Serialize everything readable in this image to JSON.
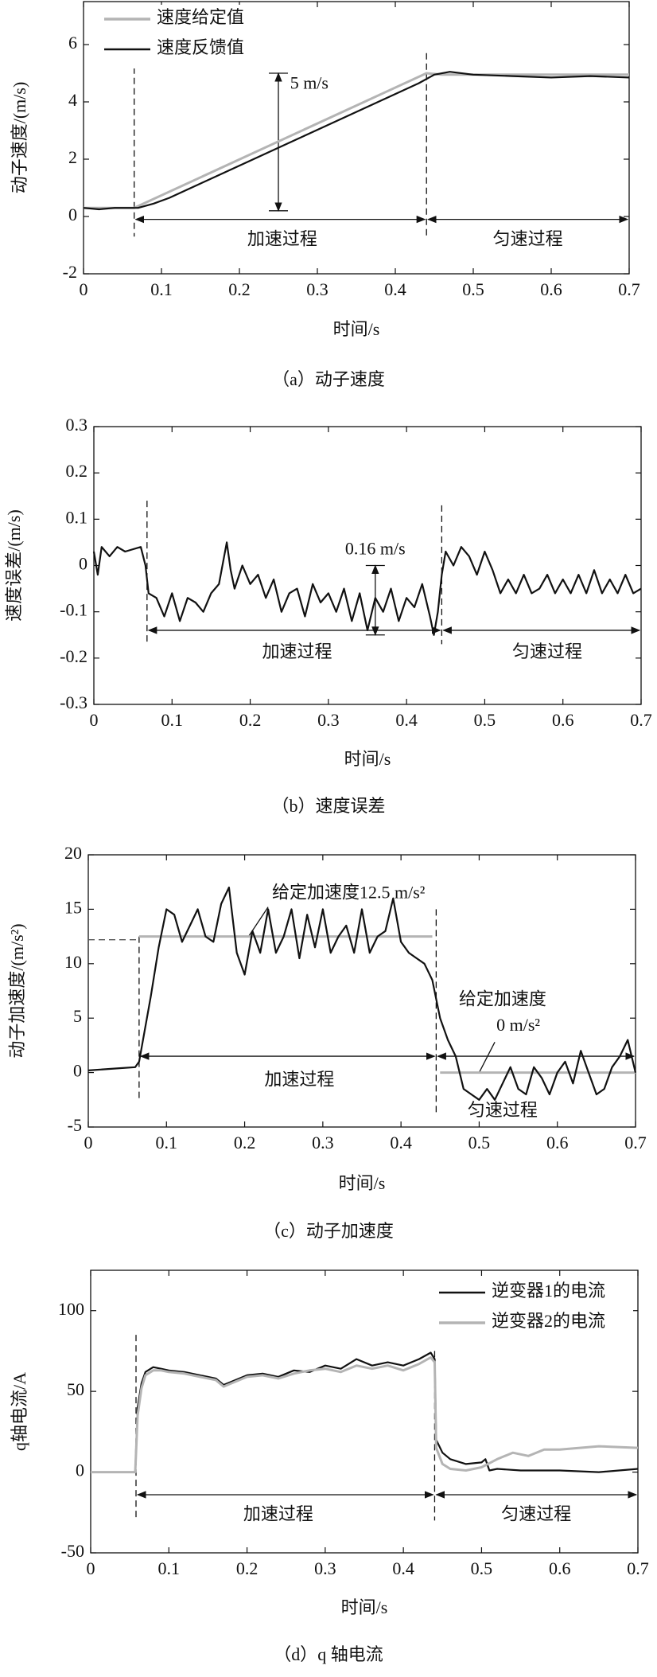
{
  "chart_data": [
    {
      "type": "line",
      "caption": "（a）动子速度",
      "xlabel": "时间/s",
      "ylabel": "动子速度/(m/s)",
      "xlim": [
        0,
        0.7
      ],
      "xticks": [
        0,
        0.1,
        0.2,
        0.3,
        0.4,
        0.5,
        0.6,
        0.7
      ],
      "ylim": [
        -2,
        7.5
      ],
      "yticks": [
        -2,
        0,
        2,
        4,
        6
      ],
      "legend": "upper left",
      "annotations": [
        "5 m/s",
        "加速过程",
        "匀速过程"
      ],
      "series": [
        {
          "name": "速度给定值",
          "color": "#b4b4b4",
          "x": [
            0,
            0.065,
            0.44,
            0.46,
            0.7
          ],
          "values": [
            0.3,
            0.3,
            5.0,
            4.95,
            4.95
          ]
        },
        {
          "name": "速度反馈值",
          "color": "#111111",
          "x": [
            0,
            0.02,
            0.04,
            0.07,
            0.09,
            0.11,
            0.13,
            0.15,
            0.17,
            0.19,
            0.21,
            0.23,
            0.25,
            0.27,
            0.29,
            0.31,
            0.33,
            0.35,
            0.37,
            0.39,
            0.41,
            0.43,
            0.45,
            0.47,
            0.5,
            0.55,
            0.6,
            0.65,
            0.7
          ],
          "values": [
            0.3,
            0.25,
            0.3,
            0.3,
            0.45,
            0.65,
            0.9,
            1.15,
            1.4,
            1.65,
            1.9,
            2.15,
            2.4,
            2.65,
            2.9,
            3.15,
            3.4,
            3.65,
            3.9,
            4.15,
            4.4,
            4.65,
            4.95,
            5.05,
            4.95,
            4.9,
            4.85,
            4.9,
            4.85
          ]
        }
      ]
    },
    {
      "type": "line",
      "caption": "（b）速度误差",
      "xlabel": "时间/s",
      "ylabel": "速度误差/(m/s)",
      "xlim": [
        0,
        0.7
      ],
      "xticks": [
        0,
        0.1,
        0.2,
        0.3,
        0.4,
        0.5,
        0.6,
        0.7
      ],
      "ylim": [
        -0.3,
        0.3
      ],
      "yticks": [
        -0.3,
        -0.2,
        -0.1,
        0,
        0.1,
        0.2,
        0.3
      ],
      "annotations": [
        "0.16 m/s",
        "加速过程",
        "匀速过程"
      ],
      "series": [
        {
          "color": "#111111",
          "x": [
            0,
            0.005,
            0.01,
            0.02,
            0.03,
            0.04,
            0.06,
            0.066,
            0.07,
            0.08,
            0.09,
            0.1,
            0.11,
            0.12,
            0.13,
            0.14,
            0.15,
            0.16,
            0.17,
            0.175,
            0.18,
            0.19,
            0.2,
            0.21,
            0.22,
            0.23,
            0.24,
            0.25,
            0.26,
            0.27,
            0.28,
            0.29,
            0.3,
            0.31,
            0.32,
            0.33,
            0.34,
            0.35,
            0.36,
            0.37,
            0.38,
            0.39,
            0.4,
            0.41,
            0.42,
            0.43,
            0.435,
            0.44,
            0.445,
            0.45,
            0.46,
            0.47,
            0.48,
            0.49,
            0.5,
            0.51,
            0.52,
            0.53,
            0.54,
            0.55,
            0.56,
            0.57,
            0.58,
            0.59,
            0.6,
            0.61,
            0.62,
            0.63,
            0.64,
            0.65,
            0.66,
            0.67,
            0.68,
            0.69,
            0.7
          ],
          "values": [
            0.03,
            -0.02,
            0.04,
            0.02,
            0.04,
            0.03,
            0.04,
            0.0,
            -0.06,
            -0.07,
            -0.11,
            -0.06,
            -0.12,
            -0.07,
            -0.08,
            -0.1,
            -0.06,
            -0.04,
            0.05,
            -0.01,
            -0.05,
            0.0,
            -0.04,
            -0.02,
            -0.07,
            -0.03,
            -0.1,
            -0.06,
            -0.05,
            -0.11,
            -0.04,
            -0.08,
            -0.06,
            -0.1,
            -0.05,
            -0.12,
            -0.06,
            -0.14,
            -0.07,
            -0.1,
            -0.05,
            -0.12,
            -0.07,
            -0.09,
            -0.04,
            -0.11,
            -0.15,
            -0.1,
            -0.02,
            0.03,
            0.0,
            0.04,
            0.02,
            -0.02,
            0.03,
            -0.01,
            -0.06,
            -0.03,
            -0.06,
            -0.02,
            -0.06,
            -0.05,
            -0.02,
            -0.06,
            -0.03,
            -0.06,
            -0.02,
            -0.06,
            -0.01,
            -0.06,
            -0.03,
            -0.06,
            -0.02,
            -0.06,
            -0.05
          ]
        }
      ]
    },
    {
      "type": "line",
      "caption": "（c）动子加速度",
      "xlabel": "时间/s",
      "ylabel": "动子加速度/(m/s²)",
      "xlim": [
        0,
        0.7
      ],
      "xticks": [
        0,
        0.1,
        0.2,
        0.3,
        0.4,
        0.5,
        0.6,
        0.7
      ],
      "ylim": [
        -5,
        20
      ],
      "yticks": [
        -5,
        0,
        5,
        10,
        15,
        20
      ],
      "annotations": [
        "给定加速度12.5 m/s²",
        "给定加速度",
        "0 m/s²",
        "加速过程",
        "匀速过程"
      ],
      "series": [
        {
          "color": "#b4b4b4",
          "x": [
            0.065,
            0.44,
            0.445,
            0.45,
            0.7
          ],
          "values": [
            12.5,
            12.5,
            null,
            0,
            0
          ]
        },
        {
          "color": "#111111",
          "x": [
            0,
            0.02,
            0.04,
            0.06,
            0.065,
            0.07,
            0.08,
            0.09,
            0.1,
            0.11,
            0.12,
            0.13,
            0.14,
            0.15,
            0.16,
            0.17,
            0.18,
            0.19,
            0.2,
            0.21,
            0.22,
            0.23,
            0.24,
            0.25,
            0.26,
            0.27,
            0.28,
            0.29,
            0.3,
            0.31,
            0.32,
            0.33,
            0.34,
            0.35,
            0.36,
            0.37,
            0.38,
            0.39,
            0.4,
            0.41,
            0.42,
            0.43,
            0.44,
            0.45,
            0.46,
            0.47,
            0.48,
            0.49,
            0.5,
            0.51,
            0.52,
            0.53,
            0.54,
            0.55,
            0.56,
            0.57,
            0.58,
            0.59,
            0.6,
            0.61,
            0.62,
            0.63,
            0.64,
            0.65,
            0.66,
            0.67,
            0.68,
            0.69,
            0.7
          ],
          "values": [
            0.2,
            0.3,
            0.4,
            0.5,
            1.0,
            3.0,
            7.0,
            11.5,
            15.0,
            14.5,
            12.0,
            13.5,
            15.0,
            12.5,
            12.0,
            15.5,
            17.0,
            11.0,
            9.0,
            13.0,
            11.0,
            15.0,
            11.0,
            12.5,
            15.0,
            10.5,
            14.5,
            11.5,
            15.0,
            11.0,
            12.5,
            13.5,
            11.0,
            15.0,
            11.0,
            12.5,
            13.0,
            16.0,
            12.0,
            11.0,
            10.5,
            10.0,
            8.5,
            5.0,
            3.0,
            1.5,
            -1.5,
            -2.0,
            -2.5,
            -1.5,
            -2.5,
            -1.0,
            0.5,
            -1.5,
            -2.0,
            0.5,
            -0.5,
            -2.0,
            0.0,
            1.0,
            -1.0,
            2.0,
            0.0,
            -2.0,
            -1.5,
            0.5,
            1.5,
            3.0,
            0.0
          ]
        }
      ]
    },
    {
      "type": "line",
      "caption": "（d）q 轴电流",
      "xlabel": "时间/s",
      "ylabel": "q轴电流/A",
      "xlim": [
        0,
        0.7
      ],
      "xticks": [
        0,
        0.1,
        0.2,
        0.3,
        0.4,
        0.5,
        0.6,
        0.7
      ],
      "ylim": [
        -50,
        125
      ],
      "yticks": [
        -50,
        0,
        50,
        100
      ],
      "legend": "upper right",
      "annotations": [
        "加速过程",
        "匀速过程"
      ],
      "series": [
        {
          "name": "逆变器1的电流",
          "color": "#111111",
          "x": [
            0,
            0.05,
            0.057,
            0.06,
            0.065,
            0.07,
            0.08,
            0.09,
            0.1,
            0.12,
            0.14,
            0.16,
            0.17,
            0.18,
            0.2,
            0.22,
            0.24,
            0.26,
            0.28,
            0.3,
            0.32,
            0.34,
            0.36,
            0.38,
            0.4,
            0.42,
            0.435,
            0.44,
            0.442,
            0.45,
            0.46,
            0.48,
            0.5,
            0.505,
            0.51,
            0.52,
            0.55,
            0.6,
            0.65,
            0.7
          ],
          "values": [
            0,
            0,
            0,
            40,
            55,
            62,
            65,
            64,
            63,
            62,
            60,
            58,
            54,
            56,
            60,
            61,
            59,
            63,
            62,
            66,
            64,
            70,
            66,
            68,
            66,
            70,
            74,
            70,
            20,
            12,
            8,
            5,
            6,
            8,
            1,
            2,
            1,
            1,
            0,
            2
          ]
        },
        {
          "name": "逆变器2的电流",
          "color": "#b4b4b4",
          "x": [
            0,
            0.05,
            0.057,
            0.06,
            0.065,
            0.07,
            0.08,
            0.09,
            0.1,
            0.12,
            0.14,
            0.16,
            0.17,
            0.18,
            0.2,
            0.22,
            0.24,
            0.26,
            0.28,
            0.3,
            0.32,
            0.34,
            0.36,
            0.38,
            0.4,
            0.42,
            0.435,
            0.44,
            0.442,
            0.45,
            0.46,
            0.48,
            0.5,
            0.52,
            0.54,
            0.56,
            0.58,
            0.6,
            0.65,
            0.7
          ],
          "values": [
            0,
            0,
            0,
            35,
            52,
            60,
            63,
            63,
            62,
            61,
            59,
            57,
            53,
            55,
            59,
            60,
            58,
            61,
            63,
            64,
            62,
            66,
            64,
            66,
            63,
            67,
            71,
            68,
            15,
            5,
            2,
            1,
            3,
            8,
            12,
            10,
            14,
            14,
            16,
            15
          ]
        }
      ]
    }
  ]
}
